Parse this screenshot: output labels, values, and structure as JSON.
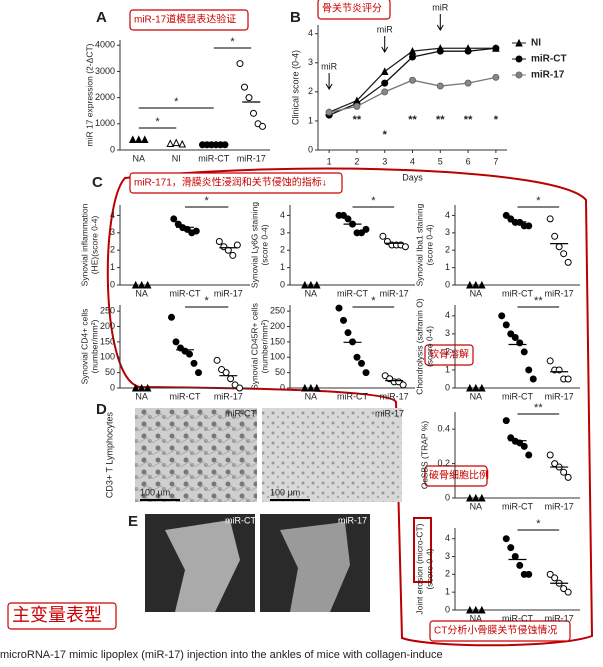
{
  "figure_labels": [
    "A",
    "B",
    "C",
    "D",
    "E"
  ],
  "annotations": [
    "miR-17道模鼠表达验证",
    "骨关节炎评分",
    "miR-171，滑膜炎性浸润和关节侵蚀的指标↓",
    "软骨溶解",
    "破骨细胞比例",
    "CT分析小骨膜关节侵蚀情况",
    "主变量表型"
  ],
  "images": {
    "D": {
      "y_label": "CD3+ T Lymphocytes",
      "panels": [
        "miR-CT",
        "miR-17"
      ],
      "scale_bar": "100 µm"
    },
    "E": {
      "panels": [
        "miR-CT",
        "miR-17"
      ]
    }
  },
  "caption": "microRNA-17 mimic lipoplex (miR-17) injection into the ankles of mice with collagen-induce",
  "chart_data": [
    {
      "type": "dot",
      "y_label": [
        "miR 17 expression (2-ΔCT)"
      ],
      "categories": [
        "NA",
        "NI",
        "miR-CT",
        "miR-17"
      ],
      "markers": [
        "triangle-filled",
        "triangle-open",
        "circle-filled",
        "circle-open"
      ],
      "values": [
        [
          400,
          400,
          400
        ],
        [
          250,
          280,
          230
        ],
        [
          200,
          200,
          200,
          200,
          200,
          200
        ],
        [
          3300,
          2400,
          2000,
          1400,
          1000,
          900
        ]
      ],
      "ylim": [
        0,
        4200
      ],
      "yticks": [
        0,
        1000,
        2000,
        3000,
        4000
      ],
      "significance": [
        "*",
        "*",
        "*"
      ]
    },
    {
      "type": "line",
      "y_label": "Clinical score (0-4)",
      "x_label": "Days",
      "x": [
        1,
        2,
        3,
        4,
        5,
        6,
        7
      ],
      "xlim": [
        0.6,
        7.4
      ],
      "xticks": [
        1,
        2,
        3,
        4,
        5,
        6,
        7
      ],
      "ylim": [
        0,
        4.3
      ],
      "yticks": [
        0,
        1,
        2,
        3,
        4
      ],
      "series": [
        {
          "name": "NI",
          "color": "#222",
          "marker": "triangle-filled",
          "values": [
            1.3,
            1.7,
            2.7,
            3.4,
            3.5,
            3.5,
            3.5
          ]
        },
        {
          "name": "miR-CT",
          "color": "#111",
          "marker": "circle-filled",
          "values": [
            1.2,
            1.6,
            2.3,
            3.2,
            3.4,
            3.4,
            3.5
          ]
        },
        {
          "name": "miR-17",
          "color": "#777",
          "marker": "circle-gray",
          "values": [
            1.3,
            1.5,
            2.0,
            2.4,
            2.2,
            2.3,
            2.5
          ]
        }
      ],
      "annotations": [
        {
          "x": 1,
          "label": "miR"
        },
        {
          "x": 3,
          "label": "miR"
        },
        {
          "x": 5,
          "label": "miR"
        }
      ],
      "significance": [
        {
          "x": 2,
          "label": "**"
        },
        {
          "x": 3,
          "label": "*"
        },
        {
          "x": 4,
          "label": "**"
        },
        {
          "x": 5,
          "label": "**"
        },
        {
          "x": 6,
          "label": "**"
        },
        {
          "x": 7,
          "label": "*"
        }
      ]
    },
    {
      "type": "dot",
      "y_label": [
        "Synovial inflammation",
        "(HE)(score 0-4)"
      ],
      "categories": [
        "NA",
        "miR-CT",
        "miR-17"
      ],
      "markers": [
        "triangle-filled",
        "circle-filled",
        "circle-open"
      ],
      "values": [
        [
          0,
          0,
          0
        ],
        [
          3.8,
          3.5,
          3.3,
          3.2,
          3.0,
          3.1
        ],
        [
          2.5,
          2.2,
          2.0,
          1.7,
          2.3
        ]
      ],
      "ylim": [
        0,
        4.6
      ],
      "yticks": [
        0,
        1,
        2,
        3,
        4
      ],
      "significance": [
        "*"
      ]
    },
    {
      "type": "dot",
      "y_label": [
        "Synovial Ly6G staining",
        "(score 0-4)"
      ],
      "categories": [
        "NA",
        "miR-CT",
        "miR-17"
      ],
      "markers": [
        "triangle-filled",
        "circle-filled",
        "circle-open"
      ],
      "values": [
        [
          0,
          0,
          0
        ],
        [
          4,
          4,
          3.8,
          3.5,
          3.0,
          3.0,
          3.2
        ],
        [
          2.8,
          2.5,
          2.3,
          2.3,
          2.3,
          2.2
        ]
      ],
      "ylim": [
        0,
        4.6
      ],
      "yticks": [
        0,
        1,
        2,
        3,
        4
      ],
      "significance": [
        "*"
      ]
    },
    {
      "type": "dot",
      "y_label": [
        "Synovial Iba1 staining",
        "(score 0-4)"
      ],
      "categories": [
        "NA",
        "miR-CT",
        "miR-17"
      ],
      "markers": [
        "triangle-filled",
        "circle-filled",
        "circle-open"
      ],
      "values": [
        [
          0,
          0,
          0
        ],
        [
          4,
          3.8,
          3.6,
          3.6,
          3.4,
          3.4
        ],
        [
          3.8,
          2.8,
          2.2,
          1.8,
          1.3
        ]
      ],
      "ylim": [
        0,
        4.6
      ],
      "yticks": [
        0,
        1,
        2,
        3,
        4
      ],
      "significance": [
        "*"
      ]
    },
    {
      "type": "dot",
      "y_label": [
        "Synovial CD4+ cells",
        "(number/mm²)"
      ],
      "categories": [
        "NA",
        "miR-CT",
        "miR-17"
      ],
      "markers": [
        "triangle-filled",
        "circle-filled",
        "circle-open"
      ],
      "values": [
        [
          0,
          0,
          0
        ],
        [
          230,
          150,
          130,
          120,
          110,
          80,
          50
        ],
        [
          90,
          60,
          50,
          30,
          10,
          0
        ]
      ],
      "ylim": [
        0,
        270
      ],
      "yticks": [
        0,
        50,
        100,
        150,
        200,
        250
      ],
      "significance": [
        "*"
      ]
    },
    {
      "type": "dot",
      "y_label": [
        "Synovial CD45R+ cells",
        "(number/mm²)"
      ],
      "categories": [
        "NA",
        "miR-CT",
        "miR-17"
      ],
      "markers": [
        "triangle-filled",
        "circle-filled",
        "circle-open"
      ],
      "values": [
        [
          0,
          0,
          0
        ],
        [
          260,
          220,
          180,
          150,
          100,
          80,
          50
        ],
        [
          40,
          30,
          20,
          20,
          10
        ]
      ],
      "ylim": [
        0,
        270
      ],
      "yticks": [
        0,
        50,
        100,
        150,
        200,
        250
      ],
      "significance": [
        "*"
      ]
    },
    {
      "type": "dot",
      "y_label": [
        "Chondrolysis (safranin O)",
        "(score 0-4)"
      ],
      "categories": [
        "NA",
        "miR-CT",
        "miR-17"
      ],
      "markers": [
        "triangle-filled",
        "circle-filled",
        "circle-open"
      ],
      "values": [
        [
          0,
          0,
          0
        ],
        [
          4,
          3.5,
          3,
          2.8,
          2.5,
          2,
          1,
          0.5
        ],
        [
          1.5,
          1,
          1,
          0.5,
          0.5
        ]
      ],
      "ylim": [
        0,
        4.6
      ],
      "yticks": [
        0,
        1,
        2,
        3,
        4
      ],
      "significance": [
        "**"
      ]
    },
    {
      "type": "dot",
      "y_label": [
        "OcSBS (TRAP %)"
      ],
      "categories": [
        "NA",
        "miR-CT",
        "miR-17"
      ],
      "markers": [
        "triangle-filled",
        "circle-filled",
        "circle-open"
      ],
      "values": [
        [
          0,
          0,
          0
        ],
        [
          0.45,
          0.35,
          0.33,
          0.32,
          0.3,
          0.25
        ],
        [
          0.25,
          0.2,
          0.18,
          0.15,
          0.12
        ]
      ],
      "ylim": [
        0,
        0.5
      ],
      "yticks": [
        0,
        0.2,
        0.4
      ],
      "significance": [
        "**"
      ]
    },
    {
      "type": "dot",
      "y_label": [
        "Joint erosion (micro-CT)",
        "(score 0-4)"
      ],
      "categories": [
        "NA",
        "miR-CT",
        "miR-17"
      ],
      "markers": [
        "triangle-filled",
        "circle-filled",
        "circle-open"
      ],
      "values": [
        [
          0,
          0,
          0
        ],
        [
          4,
          3.5,
          3,
          2.5,
          2,
          2
        ],
        [
          2,
          1.8,
          1.5,
          1.2,
          1.0
        ]
      ],
      "ylim": [
        0,
        4.6
      ],
      "yticks": [
        0,
        1,
        2,
        3,
        4
      ],
      "significance": [
        "*"
      ]
    }
  ]
}
